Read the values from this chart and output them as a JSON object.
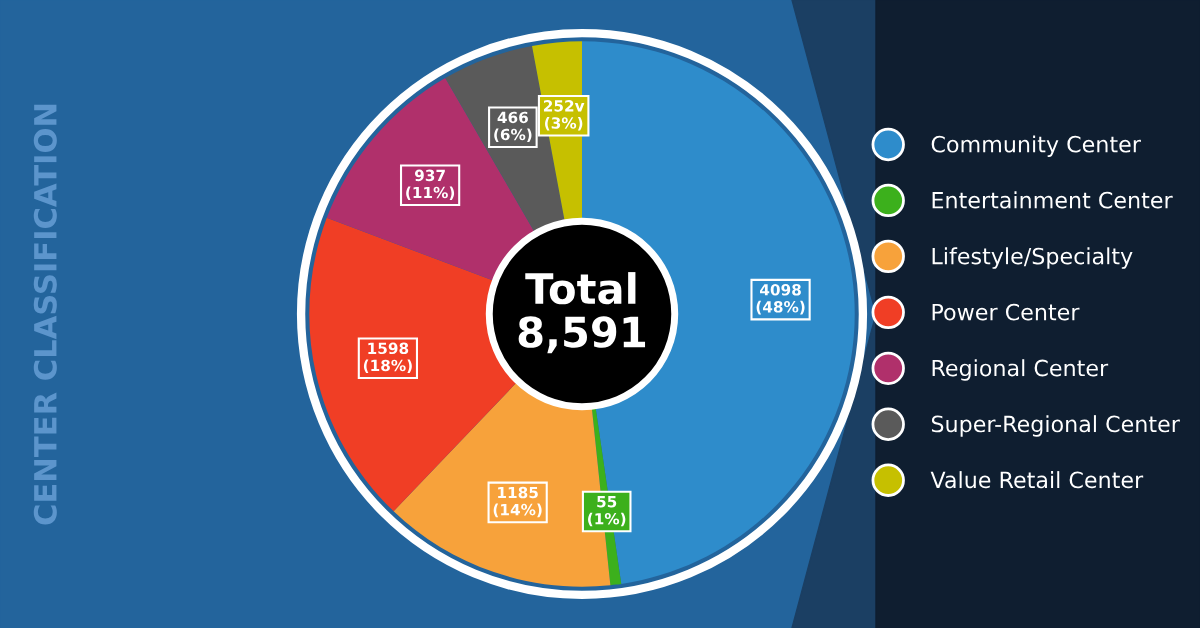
{
  "chart_data": {
    "type": "donut",
    "title": "CENTER CLASSIFICATION",
    "categories": [
      "Community Center",
      "Entertainment Center",
      "Lifestyle/Specialty",
      "Power Center",
      "Regional Center",
      "Super-Regional Center",
      "Value Retail Center"
    ],
    "values": [
      4098,
      55,
      1185,
      1598,
      937,
      466,
      252
    ],
    "colors": [
      "#2e8ccb",
      "#3cb01c",
      "#f7a23b",
      "#f03e25",
      "#b0306b",
      "#5a5a5a",
      "#c6c000"
    ],
    "value_labels": [
      "4098\n(48%)",
      "55\n(1%)",
      "1185\n(14%)",
      "1598\n(18%)",
      "937\n(11%)",
      "466\n(6%)",
      "252v\n(3%)"
    ],
    "annotations": [
      "Total\n8,591"
    ],
    "legend": "right"
  }
}
